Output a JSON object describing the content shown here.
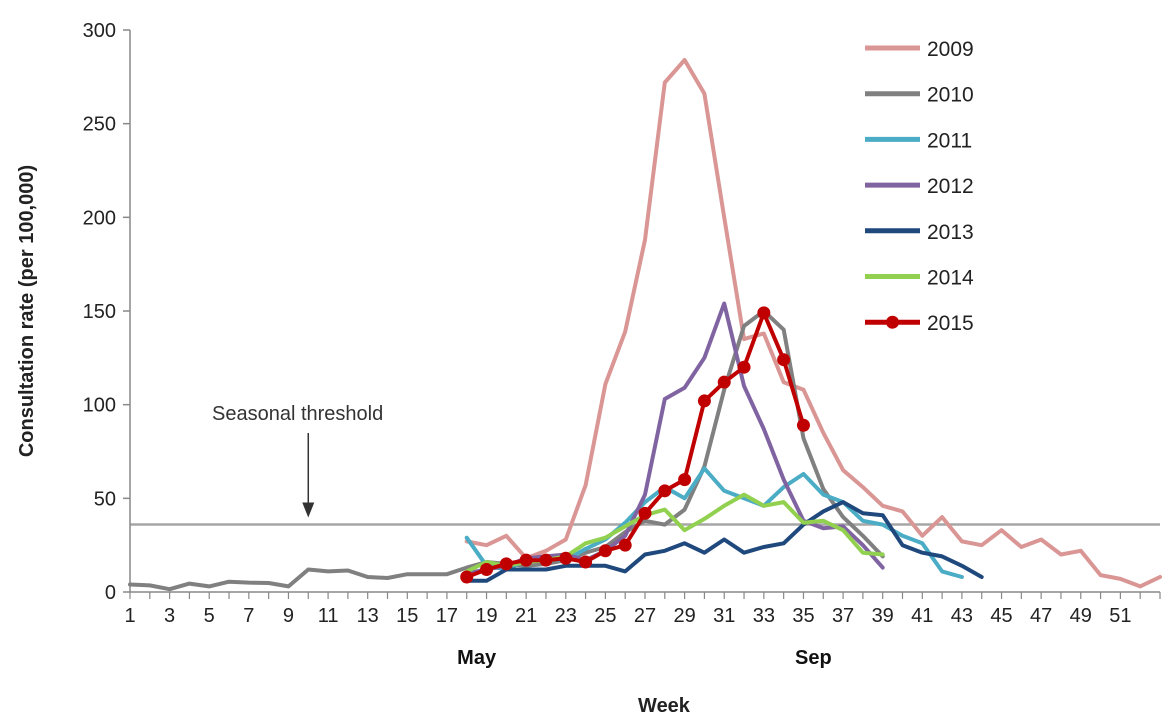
{
  "chart_data": {
    "type": "line",
    "xlabel": "Week",
    "ylabel": "Consultation rate (per 100,000)",
    "ylim": [
      0,
      300
    ],
    "y_ticks": [
      0,
      50,
      100,
      150,
      200,
      250,
      300
    ],
    "x_range": [
      1,
      53
    ],
    "x_tick_labels": [
      "1",
      "3",
      "5",
      "7",
      "9",
      "11",
      "13",
      "15",
      "17",
      "19",
      "21",
      "23",
      "25",
      "27",
      "29",
      "31",
      "33",
      "35",
      "37",
      "39",
      "41",
      "43",
      "45",
      "47",
      "49",
      "51"
    ],
    "month_labels": [
      {
        "label": "May",
        "week": 18.5
      },
      {
        "label": "Sep",
        "week": 35.5
      }
    ],
    "threshold": {
      "label": "Seasonal threshold",
      "value": 36,
      "arrow_week": 10
    },
    "legend_position": "top-right",
    "series": [
      {
        "name": "2009",
        "color": "#d99694",
        "x": [
          18,
          19,
          20,
          21,
          22,
          23,
          24,
          25,
          26,
          27,
          28,
          29,
          30,
          31,
          32,
          33,
          34,
          35,
          36,
          37,
          38,
          39,
          40,
          41,
          42,
          43,
          44,
          45,
          46,
          47,
          48,
          49,
          50,
          51,
          52,
          53
        ],
        "values": [
          27,
          25,
          30,
          18,
          22,
          28,
          57,
          111,
          139,
          188,
          272,
          284,
          266,
          200,
          135,
          138,
          112,
          108,
          85,
          65,
          56,
          46,
          43,
          30,
          40,
          27,
          25,
          33,
          24,
          28,
          20,
          22,
          9,
          7,
          3,
          8
        ]
      },
      {
        "name": "2010",
        "color": "#808080",
        "x": [
          1,
          2,
          3,
          4,
          5,
          6,
          7,
          8,
          9,
          10,
          11,
          12,
          13,
          14,
          15,
          16,
          17,
          18,
          19,
          20,
          21,
          22,
          23,
          24,
          25,
          26,
          27,
          28,
          29,
          30,
          31,
          32,
          33,
          34,
          35,
          36,
          37,
          38,
          39
        ],
        "values": [
          4,
          3.5,
          1.5,
          4.5,
          3,
          5.5,
          5,
          4.8,
          3,
          12,
          11,
          11.5,
          8,
          7.5,
          9.5,
          9.5,
          9.5,
          13,
          16,
          15,
          14,
          15,
          17,
          21,
          24,
          32,
          38,
          36,
          44,
          67,
          108,
          142,
          150,
          140,
          82,
          55,
          40,
          30,
          19
        ]
      },
      {
        "name": "2011",
        "color": "#4bacc6",
        "x": [
          18,
          19,
          20,
          21,
          22,
          23,
          24,
          25,
          26,
          27,
          28,
          29,
          30,
          31,
          32,
          33,
          34,
          35,
          36,
          37,
          38,
          39,
          40,
          41,
          42,
          43
        ],
        "values": [
          29,
          14,
          12,
          17,
          18,
          17,
          23,
          28,
          37,
          48,
          56,
          50,
          66,
          54,
          50,
          46,
          56,
          63,
          52,
          48,
          38,
          36,
          30,
          26,
          11,
          8
        ]
      },
      {
        "name": "2012",
        "color": "#8064a2",
        "x": [
          18,
          19,
          20,
          21,
          22,
          23,
          24,
          25,
          26,
          27,
          28,
          29,
          30,
          31,
          32,
          33,
          34,
          35,
          36,
          37,
          38,
          39
        ],
        "values": [
          10,
          12,
          14,
          18,
          19,
          20,
          17,
          22,
          30,
          52,
          103,
          109,
          125,
          154,
          110,
          87,
          60,
          38,
          34,
          35,
          25,
          13
        ]
      },
      {
        "name": "2013",
        "color": "#1f497d",
        "x": [
          18,
          19,
          20,
          21,
          22,
          23,
          24,
          25,
          26,
          27,
          28,
          29,
          30,
          31,
          32,
          33,
          34,
          35,
          36,
          37,
          38,
          39,
          40,
          41,
          42,
          43,
          44
        ],
        "values": [
          6,
          6,
          12,
          12,
          12,
          14,
          14,
          14,
          11,
          20,
          22,
          26,
          21,
          28,
          21,
          24,
          26,
          36,
          43,
          48,
          42,
          41,
          25,
          21,
          19,
          14,
          8
        ]
      },
      {
        "name": "2014",
        "color": "#92d050",
        "x": [
          18,
          19,
          20,
          21,
          22,
          23,
          24,
          25,
          26,
          27,
          28,
          29,
          30,
          31,
          32,
          33,
          34,
          35,
          36,
          37,
          38,
          39
        ],
        "values": [
          11,
          16,
          14,
          16,
          17,
          19,
          26,
          29,
          35,
          41,
          44,
          33,
          39,
          46,
          52,
          46,
          48,
          37,
          38,
          33,
          21,
          20
        ]
      },
      {
        "name": "2015",
        "color": "#c00000",
        "markers": true,
        "x": [
          18,
          19,
          20,
          21,
          22,
          23,
          24,
          25,
          26,
          27,
          28,
          29,
          30,
          31,
          32,
          33,
          34,
          35
        ],
        "values": [
          8,
          12,
          15,
          17,
          17,
          18,
          16,
          22,
          25,
          42,
          54,
          60,
          102,
          112,
          120,
          149,
          124,
          89
        ]
      }
    ]
  }
}
